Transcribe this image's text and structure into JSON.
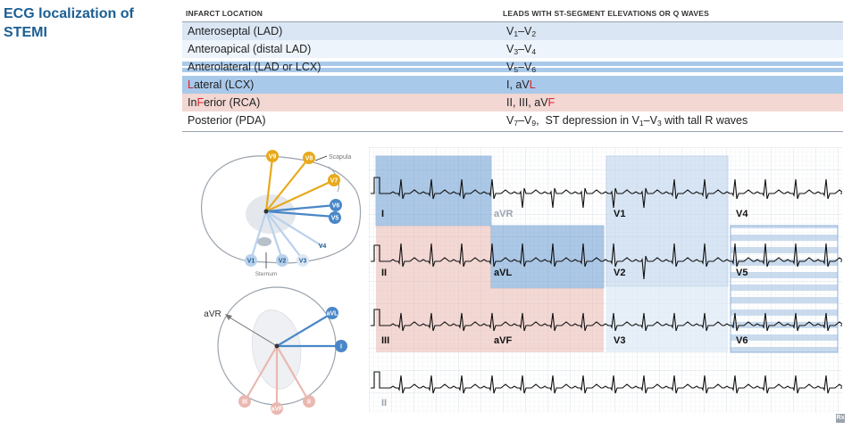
{
  "title": "ECG localization of STEMI",
  "table": {
    "headers": [
      "INFARCT LOCATION",
      "LEADS WITH ST-SEGMENT ELEVATIONS OR Q WAVES"
    ],
    "rows": [
      {
        "loc": "Anteroseptal (LAD)",
        "leads_html": "V<sub>1</sub>–V<sub>2</sub>",
        "bg": "#dbe6f4"
      },
      {
        "loc": "Anteroapical (distal LAD)",
        "leads_html": "V<sub>3</sub>–V<sub>4</sub>",
        "bg": "#eef4fb"
      },
      {
        "loc": "Anterolateral (LAD or LCX)",
        "leads_html": "V<sub>5</sub>–V<sub>6</sub>",
        "bg": "#ffffff",
        "striped": true
      },
      {
        "loc_html": "<span class='red'>L</span>ateral (LCX)",
        "leads_html": "I, aV<span class='red'>L</span>",
        "bg": "#a9c9ea"
      },
      {
        "loc_html": "In<span class='red'>F</span>erior (RCA)",
        "leads_html": "II, III, aV<span class='red'>F</span>",
        "bg": "#f2d7d3"
      },
      {
        "loc": "Posterior (PDA)",
        "leads_html": "V<sub>7</sub>–V<sub>9</sub>,&nbsp; ST depression in V<sub>1</sub>–V<sub>3</sub> with tall R waves",
        "bg": "#ffffff"
      }
    ]
  },
  "chest_diagram": {
    "labels": [
      "V9",
      "V8",
      "V7",
      "V6",
      "V5",
      "V4",
      "V3",
      "V2",
      "V1"
    ],
    "scapula": "Scapula",
    "sternum": "Sternum"
  },
  "limb_diagram": {
    "labels": [
      "aVR",
      "aVL",
      "I",
      "III",
      "aVF",
      "II"
    ]
  },
  "ecg": {
    "leads_row1": [
      "I",
      "aVR",
      "V1",
      "V4"
    ],
    "leads_row2": [
      "II",
      "aVL",
      "V2",
      "V5"
    ],
    "leads_row3": [
      "III",
      "aVF",
      "V3",
      "V6"
    ],
    "leads_row4": [
      "II"
    ]
  },
  "rx_mark": "Rx",
  "colors": {
    "title": "#1b5e94",
    "lateral_blue": "#5b93cf",
    "inferior_pink": "#e9b8b0",
    "posterior_gold": "#e8a91b",
    "anterior_blue": "#4a87c8",
    "red_letter": "#d4232b"
  }
}
